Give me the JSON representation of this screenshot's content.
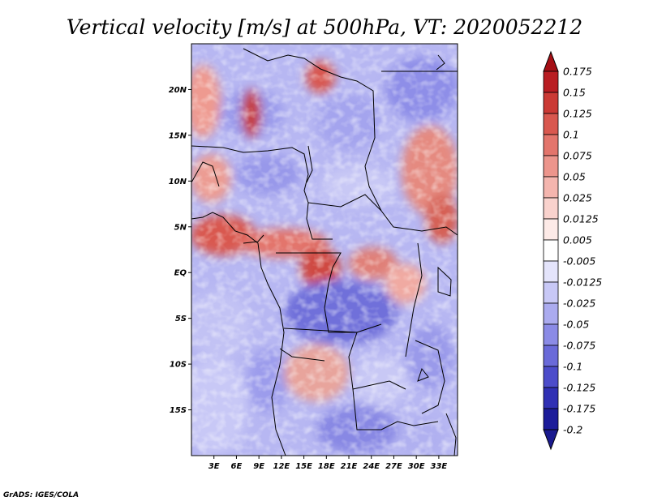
{
  "title": "Vertical velocity [m/s] at 500hPa, VT: 2020052212",
  "credit": "GrADS: IGES/COLA",
  "map": {
    "lon_range": [
      0,
      35.5
    ],
    "lat_range": [
      -20,
      25
    ],
    "lat_ticks": [
      {
        "value": 20,
        "label": "20N"
      },
      {
        "value": 15,
        "label": "15N"
      },
      {
        "value": 10,
        "label": "10N"
      },
      {
        "value": 5,
        "label": "5N"
      },
      {
        "value": 0,
        "label": "EQ"
      },
      {
        "value": -5,
        "label": "5S"
      },
      {
        "value": -10,
        "label": "10S"
      },
      {
        "value": -15,
        "label": "15S"
      }
    ],
    "lon_ticks": [
      {
        "value": 3,
        "label": "3E"
      },
      {
        "value": 6,
        "label": "6E"
      },
      {
        "value": 9,
        "label": "9E"
      },
      {
        "value": 12,
        "label": "12E"
      },
      {
        "value": 15,
        "label": "15E"
      },
      {
        "value": 18,
        "label": "18E"
      },
      {
        "value": 21,
        "label": "21E"
      },
      {
        "value": 24,
        "label": "24E"
      },
      {
        "value": 27,
        "label": "27E"
      },
      {
        "value": 30,
        "label": "30E"
      },
      {
        "value": 33,
        "label": "33E"
      }
    ]
  },
  "colorbar": {
    "levels": [
      {
        "label": "0.175",
        "color": "#a50f15"
      },
      {
        "label": "0.15",
        "color": "#b91d22"
      },
      {
        "label": "0.125",
        "color": "#cb3a35"
      },
      {
        "label": "0.1",
        "color": "#d9584f"
      },
      {
        "label": "0.075",
        "color": "#e3756c"
      },
      {
        "label": "0.05",
        "color": "#ec958c"
      },
      {
        "label": "0.025",
        "color": "#f4b5ae"
      },
      {
        "label": "0.0125",
        "color": "#f9d2cd"
      },
      {
        "label": "0.005",
        "color": "#fdeae7"
      },
      {
        "label": "-0.005",
        "color": "#ffffff"
      },
      {
        "label": "-0.0125",
        "color": "#e4e4fb"
      },
      {
        "label": "-0.025",
        "color": "#c8c8f6"
      },
      {
        "label": "-0.05",
        "color": "#ababef"
      },
      {
        "label": "-0.075",
        "color": "#8b8be6"
      },
      {
        "label": "-0.1",
        "color": "#6a6ad9"
      },
      {
        "label": "-0.125",
        "color": "#4c4cca"
      },
      {
        "label": "-0.175",
        "color": "#3030b4"
      },
      {
        "label": "-0.2",
        "color": "#1c1c9a"
      }
    ],
    "top_color": "#a50f15",
    "bottom_color": "#1a1a8e"
  }
}
